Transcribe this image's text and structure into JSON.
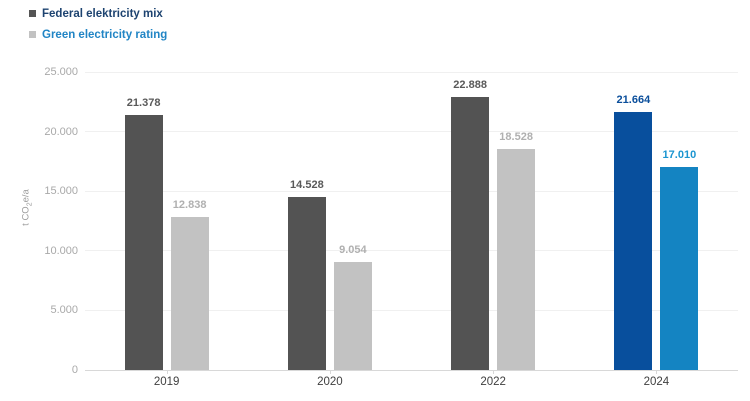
{
  "chart_data": {
    "type": "bar",
    "title": "",
    "ylabel_parts": {
      "prefix": "t CO",
      "sub": "2",
      "suffix": "e/a"
    },
    "categories": [
      "2019",
      "2020",
      "2022",
      "2024"
    ],
    "series": [
      {
        "name": "Federal elektricity mix",
        "values": [
          21378,
          14528,
          22888,
          21664
        ],
        "value_labels": [
          "21.378",
          "14.528",
          "22.888",
          "21.664"
        ],
        "bar_colors": [
          "#535353",
          "#535353",
          "#535353",
          "#084f9d"
        ],
        "label_colors": [
          "#595959",
          "#595959",
          "#595959",
          "#0a4e9b"
        ],
        "legend_marker_color": "#545454",
        "legend_text_color": "#1d4370"
      },
      {
        "name": "Green electricity rating",
        "values": [
          12838,
          9054,
          18528,
          17010
        ],
        "value_labels": [
          "12.838",
          "9.054",
          "18.528",
          "17.010"
        ],
        "bar_colors": [
          "#c2c2c2",
          "#c2c2c2",
          "#c2c2c2",
          "#1484c2"
        ],
        "label_colors": [
          "#b0b0b0",
          "#b0b0b0",
          "#b0b0b0",
          "#1b95d0"
        ],
        "legend_marker_color": "#c2c2c2",
        "legend_text_color": "#2185c5"
      }
    ],
    "ylim": [
      0,
      25000
    ],
    "yticks": [
      {
        "value": 0,
        "label": "0"
      },
      {
        "value": 5000,
        "label": "5.000"
      },
      {
        "value": 10000,
        "label": "10.000"
      },
      {
        "value": 15000,
        "label": "15.000"
      },
      {
        "value": 20000,
        "label": "20.000"
      },
      {
        "value": 25000,
        "label": "25.000"
      }
    ],
    "grid": true,
    "legend_position": "top-left"
  },
  "colors": {
    "background": "#ffffff",
    "gridline": "#f0f0f0",
    "axis_line": "#d8d8d8",
    "category_tick": "#d8d8d8",
    "ytick_text": "#a9a9a9",
    "xtick_text": "#3f3f3f",
    "ylabel_text": "#9a9a9a"
  }
}
